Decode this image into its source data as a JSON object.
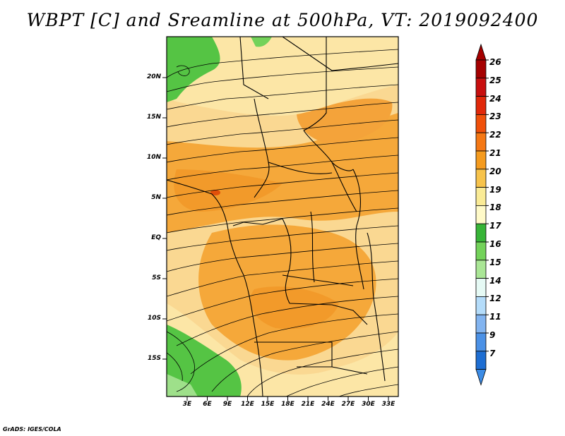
{
  "title": "WBPT [C] and Sreamline at 500hPa, VT: 2019092400",
  "footer": "GrADS: IGES/COLA",
  "map": {
    "lat_range": [
      -19,
      24
    ],
    "lon_range": [
      -0.5,
      35.5
    ],
    "y_ticks": [
      "20N",
      "15N",
      "10N",
      "5N",
      "EQ",
      "5S",
      "10S",
      "15S"
    ],
    "x_ticks": [
      "3E",
      "6E",
      "9E",
      "12E",
      "15E",
      "18E",
      "21E",
      "24E",
      "27E",
      "30E",
      "33E"
    ]
  },
  "colorbar": {
    "labels": [
      "26",
      "25",
      "24",
      "23",
      "22",
      "21",
      "20",
      "19",
      "18",
      "17",
      "16",
      "15",
      "14",
      "12",
      "11",
      "9",
      "7"
    ],
    "colors": [
      "#a50000",
      "#c80f0f",
      "#e1280a",
      "#f0500a",
      "#f57814",
      "#f59b1e",
      "#f7c34b",
      "#faeb96",
      "#fffac8",
      "#37b437",
      "#73d25a",
      "#aae696",
      "#e6faf5",
      "#b4dcfa",
      "#82b4f0",
      "#4b91e6",
      "#1e6ed2"
    ],
    "top_arrow_color": "#a50000",
    "bottom_arrow_color": "#3c8ce6"
  }
}
